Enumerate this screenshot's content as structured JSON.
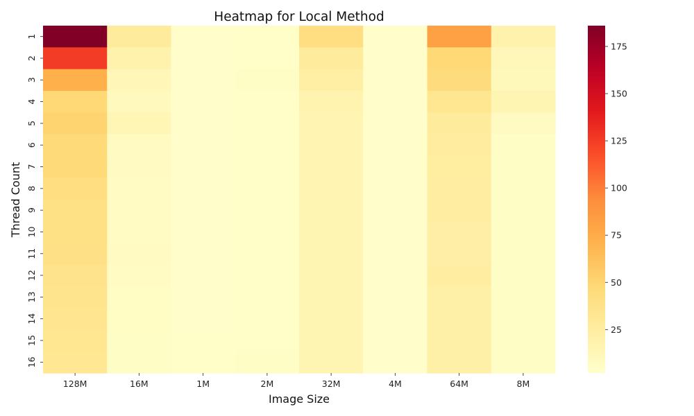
{
  "chart_data": {
    "type": "heatmap",
    "title": "Heatmap for Local Method",
    "xlabel": "Image Size",
    "ylabel": "Thread Count",
    "x_categories": [
      "128M",
      "16M",
      "1M",
      "2M",
      "32M",
      "4M",
      "64M",
      "8M"
    ],
    "y_categories": [
      "1",
      "2",
      "3",
      "4",
      "5",
      "6",
      "7",
      "8",
      "9",
      "10",
      "11",
      "12",
      "13",
      "14",
      "15",
      "16"
    ],
    "values": [
      [
        186,
        27,
        3,
        4,
        42,
        3,
        82,
        18
      ],
      [
        125,
        18,
        3,
        4,
        27,
        3,
        48,
        12
      ],
      [
        72,
        13,
        3,
        5,
        23,
        3,
        44,
        11
      ],
      [
        48,
        10,
        3,
        4,
        17,
        3,
        33,
        15
      ],
      [
        51,
        14,
        3,
        4,
        16,
        3,
        27,
        8
      ],
      [
        47,
        8,
        3,
        4,
        16,
        3,
        26,
        5
      ],
      [
        47,
        8,
        3,
        4,
        16,
        3,
        25,
        5
      ],
      [
        42,
        7,
        3,
        4,
        16,
        3,
        24,
        5
      ],
      [
        40,
        7,
        3,
        4,
        15,
        3,
        24,
        5
      ],
      [
        40,
        7,
        3,
        4,
        15,
        3,
        22,
        5
      ],
      [
        39,
        8,
        3,
        4,
        15,
        3,
        22,
        5
      ],
      [
        36,
        7,
        3,
        4,
        15,
        3,
        24,
        5
      ],
      [
        35,
        6,
        3,
        4,
        15,
        3,
        21,
        5
      ],
      [
        34,
        6,
        3,
        4,
        15,
        3,
        21,
        5
      ],
      [
        33,
        5,
        4,
        4,
        15,
        3,
        21,
        5
      ],
      [
        32,
        5,
        4,
        5,
        15,
        3,
        21,
        5
      ]
    ],
    "colorbar": {
      "min": 2,
      "max": 186,
      "ticks": [
        25,
        50,
        75,
        100,
        125,
        150,
        175
      ]
    },
    "colormap": "YlOrRd",
    "grid": false,
    "legend": "colorbar-right"
  }
}
